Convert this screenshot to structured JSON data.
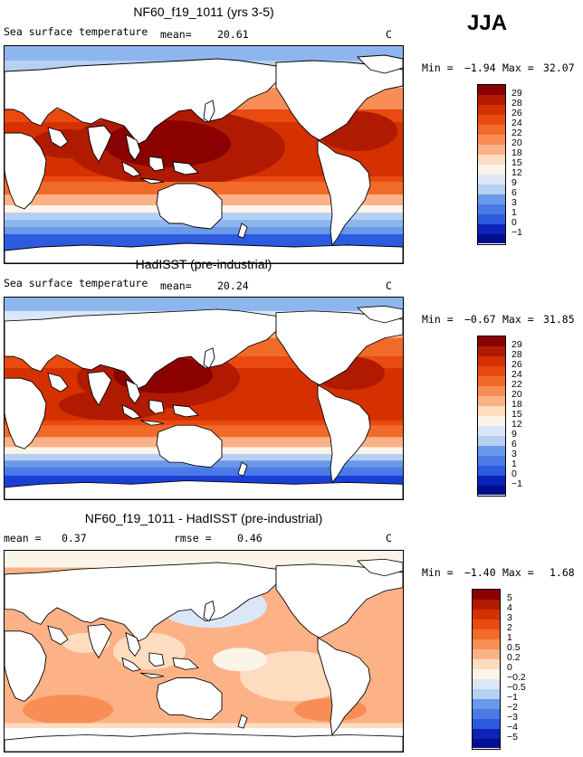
{
  "season_label": "JJA",
  "panels": [
    {
      "title": "NF60_f19_1011 (yrs 3-5)",
      "variable_label": "Sea surface temperature",
      "mean_label": "mean=",
      "mean_value": "20.61",
      "unit": "C",
      "min_label": "Min =",
      "min_value": "−1.94",
      "max_label": "Max =",
      "max_value": "32.07",
      "colorbar_labels": [
        "29",
        "28",
        "26",
        "24",
        "22",
        "20",
        "18",
        "15",
        "12",
        "9",
        "6",
        "3",
        "1",
        "0",
        "−1"
      ]
    },
    {
      "title": "HadISST (pre-industrial)",
      "variable_label": "Sea surface temperature",
      "mean_label": "mean=",
      "mean_value": "20.24",
      "unit": "C",
      "min_label": "Min =",
      "min_value": "−0.67",
      "max_label": "Max =",
      "max_value": "31.85",
      "colorbar_labels": [
        "29",
        "28",
        "26",
        "24",
        "22",
        "20",
        "18",
        "15",
        "12",
        "9",
        "6",
        "3",
        "1",
        "0",
        "−1"
      ]
    },
    {
      "title": "NF60_f19_1011 - HadISST (pre-industrial)",
      "mean_label": "mean =",
      "mean_value": "0.37",
      "rmse_label": "rmse =",
      "rmse_value": "0.46",
      "unit": "C",
      "min_label": "Min =",
      "min_value": "−1.40",
      "max_label": "Max =",
      "max_value": "1.68",
      "colorbar_labels": [
        "5",
        "4",
        "3",
        "2",
        "1",
        "0.5",
        "0.2",
        "0",
        "−0.2",
        "−0.5",
        "−1",
        "−2",
        "−3",
        "−4",
        "−5"
      ]
    }
  ],
  "colors": {
    "temp_scale": [
      "#8b0000",
      "#b01a00",
      "#d43000",
      "#e84a10",
      "#f26a2a",
      "#f88e55",
      "#fcb286",
      "#fddcc0",
      "#fbf4e8",
      "#dbe7f6",
      "#b6d0f3",
      "#8eb6ee",
      "#6a98ea",
      "#4a7ae6",
      "#2d5be0",
      "#1a3fd6",
      "#0c22b8",
      "#000f8e"
    ],
    "diff_scale": [
      "#8b0000",
      "#b01a00",
      "#d43000",
      "#e84a10",
      "#f26a2a",
      "#f88e55",
      "#fcb286",
      "#fddcc0",
      "#fbf4e8",
      "#dbe7f6",
      "#b6d0f3",
      "#8eb6ee",
      "#6a98ea",
      "#4a7ae6",
      "#2d5be0",
      "#1a3fd6",
      "#0c22b8",
      "#000f8e"
    ]
  }
}
